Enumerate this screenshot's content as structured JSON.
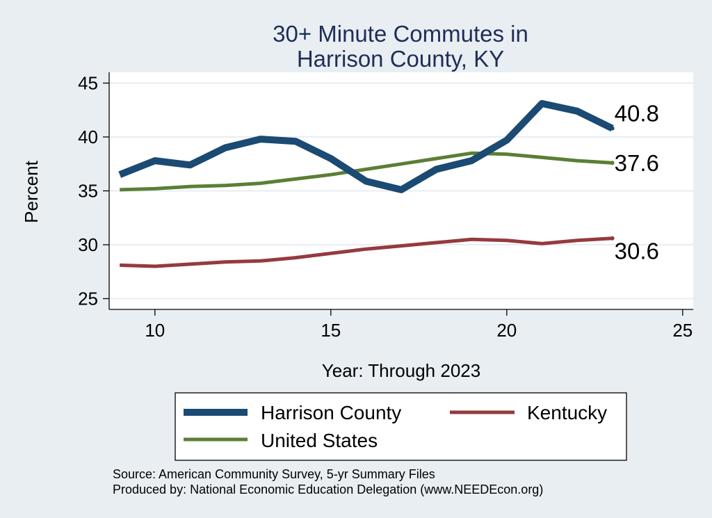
{
  "chart_data": {
    "type": "line",
    "title": [
      "30+ Minute Commutes in",
      "Harrison County, KY"
    ],
    "xlabel": "Year: Through 2023",
    "ylabel": "Percent",
    "xlim": [
      8.7,
      25.3
    ],
    "ylim": [
      24,
      46
    ],
    "xticks": [
      10,
      15,
      20,
      25
    ],
    "yticks": [
      25,
      30,
      35,
      40,
      45
    ],
    "grid": true,
    "x": [
      9,
      10,
      11,
      12,
      13,
      14,
      15,
      16,
      17,
      18,
      19,
      20,
      21,
      22,
      23
    ],
    "series": [
      {
        "name": "Harrison County",
        "color": "#1b4a72",
        "values": [
          36.5,
          37.8,
          37.4,
          39.0,
          39.8,
          39.6,
          38.0,
          35.9,
          35.1,
          37.0,
          37.8,
          39.7,
          43.1,
          42.4,
          40.8
        ],
        "end_label": "40.8"
      },
      {
        "name": "Kentucky",
        "color": "#953a3e",
        "values": [
          28.1,
          28.0,
          28.2,
          28.4,
          28.5,
          28.8,
          29.2,
          29.6,
          29.9,
          30.2,
          30.5,
          30.4,
          30.1,
          30.4,
          30.6
        ],
        "end_label": "30.6"
      },
      {
        "name": "United States",
        "color": "#5a7f35",
        "values": [
          35.1,
          35.2,
          35.4,
          35.5,
          35.7,
          36.1,
          36.5,
          37.0,
          37.5,
          38.0,
          38.5,
          38.4,
          38.1,
          37.8,
          37.6
        ],
        "end_label": "37.6"
      }
    ],
    "legend": {
      "placement": "bottom",
      "order": [
        "Harrison County",
        "Kentucky",
        "United States"
      ]
    },
    "source_lines": [
      "Source: American Community Survey, 5-yr Summary Files",
      "Produced by: National Economic Education Delegation (www.NEEDEcon.org)"
    ]
  }
}
